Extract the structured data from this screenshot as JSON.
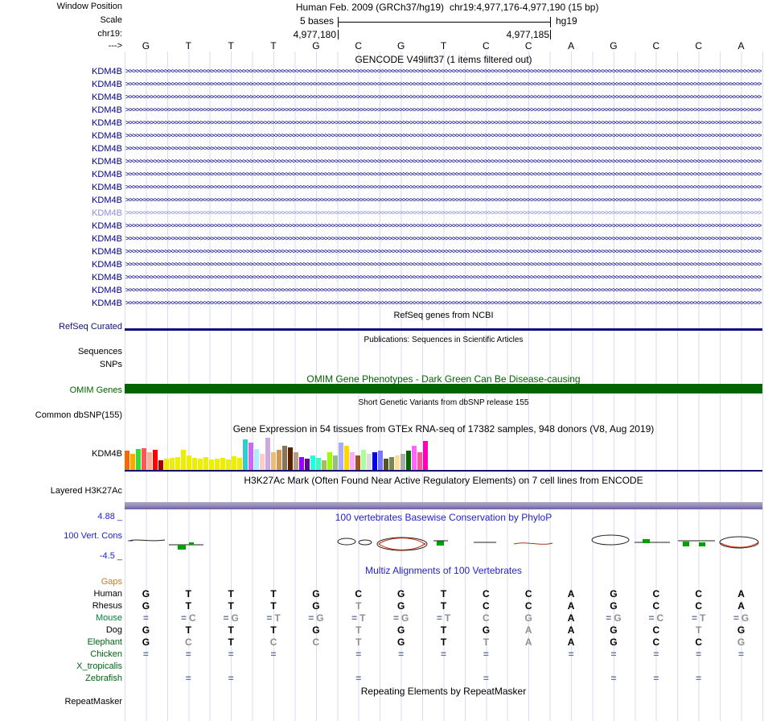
{
  "header": {
    "window_position_label": "Window Position",
    "assembly": "Human Feb. 2009 (GRCh37/hg19)",
    "position": "chr19:4,977,176-4,977,190 (15 bp)",
    "scale_label": "Scale",
    "scale_value": "5 bases",
    "assembly_short": "hg19",
    "chrom_label": "chr19:",
    "coords": [
      "4,977,180",
      "4,977,185"
    ],
    "strand_label": "--->",
    "sequence": [
      "G",
      "T",
      "T",
      "T",
      "G",
      "C",
      "G",
      "T",
      "C",
      "C",
      "A",
      "G",
      "C",
      "C",
      "A"
    ]
  },
  "gencode": {
    "title": "GENCODE V49lift37 (1 items filtered out)",
    "gene": "KDM4B",
    "rows": 19,
    "light_row_index": 11,
    "normal_color": "#00008b",
    "light_color": "#8c8cdc"
  },
  "refseq": {
    "title": "RefSeq genes from NCBI",
    "label": "RefSeq Curated",
    "color": "#101078"
  },
  "publications": {
    "title": "Publications: Sequences in Scientific Articles",
    "labels": [
      "Sequences",
      "SNPs"
    ]
  },
  "omim": {
    "title": "OMIM Gene Phenotypes - Dark Green Can Be Disease-causing",
    "label": "OMIM Genes",
    "color": "#006400"
  },
  "dbsnp": {
    "title": "Short Genetic Variants from dbSNP release 155",
    "label": "Common dbSNP(155)"
  },
  "gtex": {
    "title": "Gene Expression in 54 tissues from GTEx RNA-seq of 17382 samples, 948 donors (V8, Aug 2019)",
    "label": "KDM4B",
    "baseline_color": "#13136b",
    "bars": [
      [
        "#FF6600",
        24
      ],
      [
        "#FFAA00",
        20
      ],
      [
        "#33DD33",
        26
      ],
      [
        "#FF5555",
        27
      ],
      [
        "#FFAA99",
        22
      ],
      [
        "#FF0000",
        25
      ],
      [
        "#AA0000",
        12
      ],
      [
        "#EEEE00",
        14
      ],
      [
        "#EEEE00",
        15
      ],
      [
        "#EEEE00",
        16
      ],
      [
        "#EEEE00",
        25
      ],
      [
        "#EEEE00",
        18
      ],
      [
        "#EEEE00",
        15
      ],
      [
        "#EEEE00",
        14
      ],
      [
        "#EEEE00",
        16
      ],
      [
        "#EEEE00",
        13
      ],
      [
        "#EEEE00",
        14
      ],
      [
        "#EEEE00",
        15
      ],
      [
        "#EEEE00",
        13
      ],
      [
        "#EEEE00",
        17
      ],
      [
        "#EEEE00",
        15
      ],
      [
        "#33CCCC",
        38
      ],
      [
        "#CC66FF",
        34
      ],
      [
        "#AAEEFF",
        26
      ],
      [
        "#FFCCCC",
        20
      ],
      [
        "#CCAADD",
        40
      ],
      [
        "#EEBB77",
        22
      ],
      [
        "#CC9955",
        25
      ],
      [
        "#8B7355",
        30
      ],
      [
        "#552200",
        28
      ],
      [
        "#BB9988",
        22
      ],
      [
        "#9900FF",
        16
      ],
      [
        "#660099",
        14
      ],
      [
        "#22FFDD",
        18
      ],
      [
        "#33FFC2",
        15
      ],
      [
        "#AABB66",
        12
      ],
      [
        "#99FF00",
        22
      ],
      [
        "#99BB88",
        18
      ],
      [
        "#AAAAFF",
        34
      ],
      [
        "#FFD700",
        30
      ],
      [
        "#FFAAFF",
        22
      ],
      [
        "#995522",
        18
      ],
      [
        "#AAFF99",
        25
      ],
      [
        "#DDDDDD",
        20
      ],
      [
        "#0000FF",
        22
      ],
      [
        "#7777FF",
        24
      ],
      [
        "#555522",
        14
      ],
      [
        "#778855",
        16
      ],
      [
        "#FFDD99",
        18
      ],
      [
        "#AAAAAA",
        20
      ],
      [
        "#006600",
        24
      ],
      [
        "#FF66FF",
        30
      ],
      [
        "#FF5599",
        22
      ],
      [
        "#FF00BB",
        36
      ]
    ]
  },
  "h3k27ac": {
    "title": "H3K27Ac Mark (Often Found Near Active Regulatory Elements) on 7 cell lines from ENCODE",
    "label": "Layered H3K27Ac"
  },
  "conservation": {
    "title": "100 vertebrates Basewise Conservation by PhyloP",
    "label": "100 Vert. Cons",
    "max": "4.88 _",
    "min": "-4.5 _",
    "color": "#2222cc"
  },
  "multiz": {
    "title": "Multiz Alignments of 100 Vertebrates",
    "gaps_label": "Gaps",
    "gaps_color": "#c08020",
    "species": [
      {
        "name": "Human",
        "color": "#000000",
        "cells": [
          "G",
          "T",
          "T",
          "T",
          "G",
          "C",
          "G",
          "T",
          "C",
          "C",
          "A",
          "G",
          "C",
          "C",
          "A"
        ]
      },
      {
        "name": "Rhesus",
        "color": "#000000",
        "cells": [
          "G",
          "T",
          "T",
          "T",
          "G",
          "t",
          "G",
          "T",
          "C",
          "C",
          "A",
          "G",
          "C",
          "C",
          "A"
        ]
      },
      {
        "name": "Mouse",
        "color": "#00803c",
        "cells": [
          "=",
          "=c",
          "=g",
          "=t",
          "=g",
          "=t",
          "=g",
          "=t",
          "c",
          "g",
          "A",
          "=g",
          "=c",
          "=t",
          "=g"
        ]
      },
      {
        "name": "Dog",
        "color": "#000000",
        "cells": [
          "G",
          "T",
          "T",
          "T",
          "G",
          "t",
          "G",
          "T",
          "G",
          "a",
          "A",
          "G",
          "C",
          "t",
          "G"
        ]
      },
      {
        "name": "Elephant",
        "color": "#006414",
        "cells": [
          "G",
          "c",
          "T",
          "c",
          "c",
          "t",
          "G",
          "T",
          "t",
          "a",
          "A",
          "G",
          "C",
          "C",
          "g"
        ]
      },
      {
        "name": "Chicken",
        "color": "#006414",
        "cells": [
          "=",
          "=",
          "=",
          "=",
          "",
          "=",
          "=",
          "=",
          "=",
          "",
          "=",
          "=",
          "=",
          "=",
          "="
        ]
      },
      {
        "name": "X_tropicalis",
        "color": "#006414",
        "cells": [
          "",
          "",
          "",
          "",
          "",
          "",
          "",
          "",
          "",
          "",
          "",
          "",
          "",
          "",
          ""
        ]
      },
      {
        "name": "Zebrafish",
        "color": "#006414",
        "cells": [
          "",
          "=",
          "=",
          "",
          "",
          "=",
          "",
          "",
          "=",
          "",
          "",
          "=",
          "=",
          "=",
          ""
        ]
      }
    ]
  },
  "repeatmasker": {
    "title": "Repeating Elements by RepeatMasker",
    "label": "RepeatMasker"
  }
}
